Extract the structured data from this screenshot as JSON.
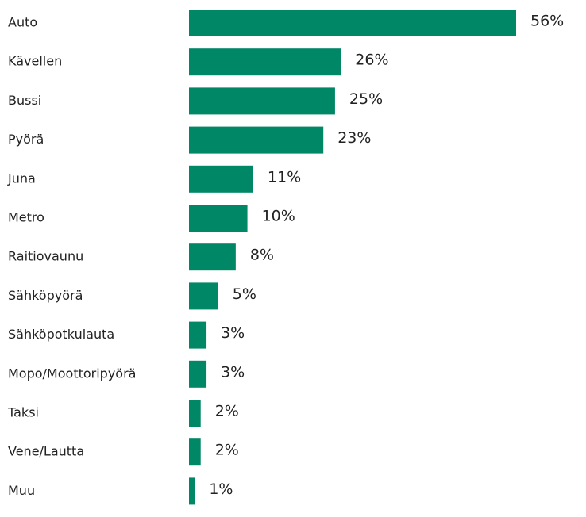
{
  "chart_data": {
    "type": "bar",
    "orientation": "horizontal",
    "categories": [
      "Auto",
      "Kävellen",
      "Bussi",
      "Pyörä",
      "Juna",
      "Metro",
      "Raitiovaunu",
      "Sähköpyörä",
      "Sähköpotkulauta",
      "Mopo/Moottoripyörä",
      "Taksi",
      "Vene/Lautta",
      "Muu"
    ],
    "values": [
      56,
      26,
      25,
      23,
      11,
      10,
      8,
      5,
      3,
      3,
      2,
      2,
      1
    ],
    "value_labels": [
      "56%",
      "26%",
      "25%",
      "23%",
      "11%",
      "10%",
      "8%",
      "5%",
      "3%",
      "3%",
      "2%",
      "2%",
      "1%"
    ],
    "color": "#008765"
  }
}
